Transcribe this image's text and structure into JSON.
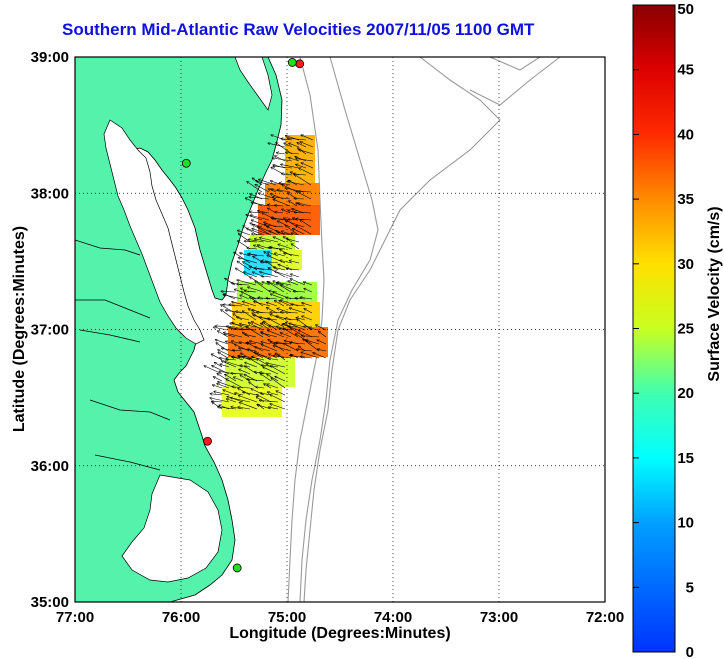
{
  "title": "Southern Mid-Atlantic Raw Velocities 2007/11/05 1100 GMT",
  "x_axis": {
    "label": "Longitude (Degrees:Minutes)",
    "ticks": [
      {
        "value": -77,
        "label": "77:00"
      },
      {
        "value": -76,
        "label": "76:00"
      },
      {
        "value": -75,
        "label": "75:00"
      },
      {
        "value": -74,
        "label": "74:00"
      },
      {
        "value": -73,
        "label": "73:00"
      },
      {
        "value": -72,
        "label": "72:00"
      }
    ],
    "range": [
      -77,
      -72
    ]
  },
  "y_axis": {
    "label": "Latitude (Degrees:Minutes)",
    "ticks": [
      {
        "value": 35,
        "label": "35:00"
      },
      {
        "value": 36,
        "label": "36:00"
      },
      {
        "value": 37,
        "label": "37:00"
      },
      {
        "value": 38,
        "label": "38:00"
      },
      {
        "value": 39,
        "label": "39:00"
      }
    ],
    "range": [
      35,
      39
    ]
  },
  "colorbar": {
    "label": "Surface Velocity (cm/s)",
    "min": 0,
    "max": 50,
    "ticks": [
      "0",
      "5",
      "10",
      "15",
      "20",
      "25",
      "30",
      "35",
      "40",
      "45",
      "50"
    ]
  },
  "grid": "dotted",
  "colors": {
    "land": "#55f2ac",
    "title": "#1010e0",
    "bathymetry": "#9a9a9a",
    "station_on": "#22dd22",
    "station_off": "#ff1a1a"
  },
  "stations": [
    {
      "lon": -74.88,
      "lat": 38.95,
      "status": "off"
    },
    {
      "lon": -74.95,
      "lat": 38.96,
      "status": "on"
    },
    {
      "lon": -75.95,
      "lat": 38.22,
      "status": "on"
    },
    {
      "lon": -75.75,
      "lat": 36.18,
      "status": "off"
    },
    {
      "lon": -75.47,
      "lat": 35.25,
      "status": "on"
    }
  ]
}
